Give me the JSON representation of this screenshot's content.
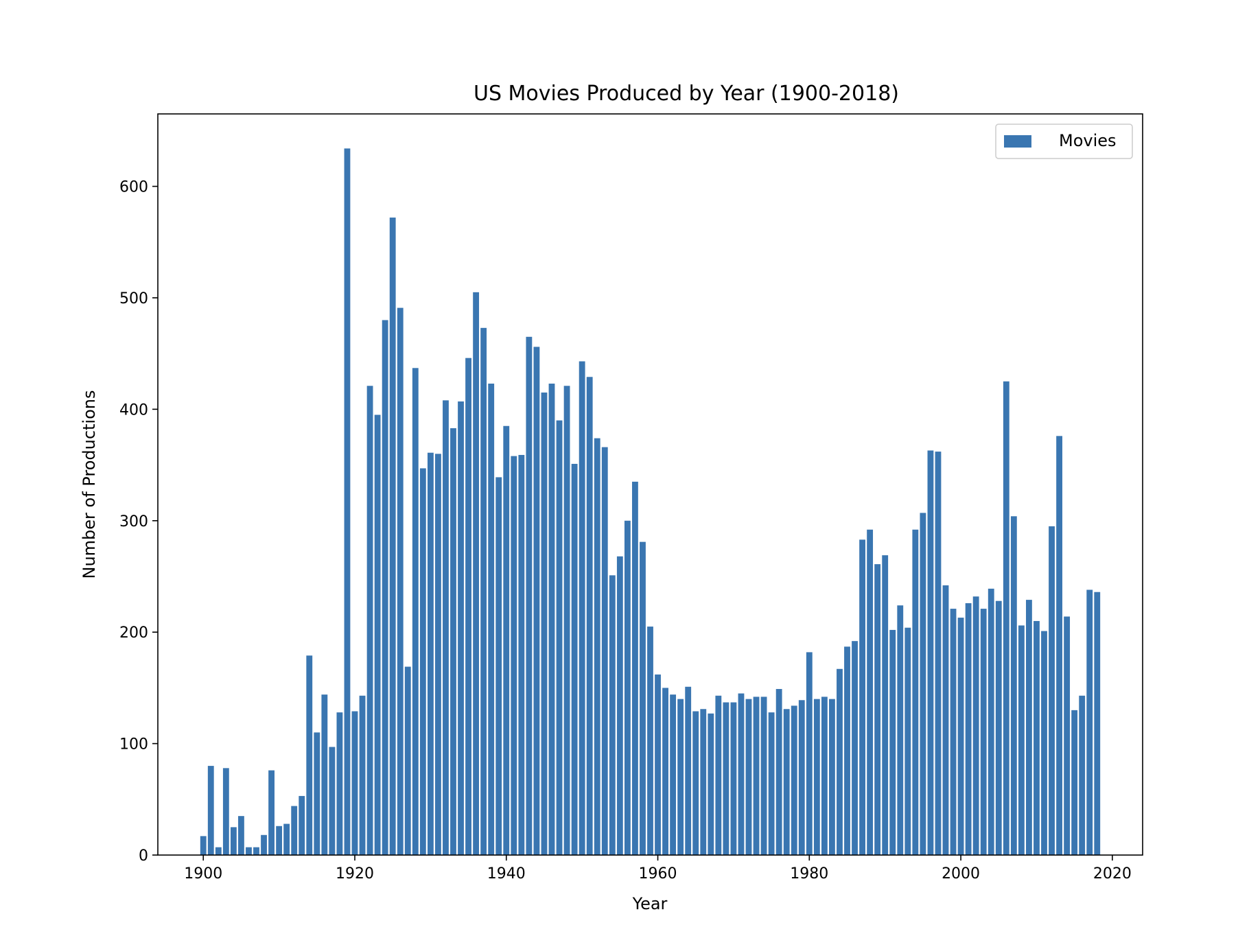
{
  "chart_data": {
    "type": "bar",
    "title": "US Movies Produced by Year (1900-2018)",
    "xlabel": "Year",
    "ylabel": "Number of Productions",
    "xlim": [
      1894,
      2024
    ],
    "ylim": [
      0,
      665
    ],
    "xticks": [
      1900,
      1920,
      1940,
      1960,
      1980,
      2000,
      2020
    ],
    "yticks": [
      0,
      100,
      200,
      300,
      400,
      500,
      600
    ],
    "grid": false,
    "legend_position": "top-right",
    "bar_color": "#3a76b1",
    "series": [
      {
        "name": "Movies",
        "x": [
          1900,
          1901,
          1902,
          1903,
          1904,
          1905,
          1906,
          1907,
          1908,
          1909,
          1910,
          1911,
          1912,
          1913,
          1914,
          1915,
          1916,
          1917,
          1918,
          1919,
          1920,
          1921,
          1922,
          1923,
          1924,
          1925,
          1926,
          1927,
          1928,
          1929,
          1930,
          1931,
          1932,
          1933,
          1934,
          1935,
          1936,
          1937,
          1938,
          1939,
          1940,
          1941,
          1942,
          1943,
          1944,
          1945,
          1946,
          1947,
          1948,
          1949,
          1950,
          1951,
          1952,
          1953,
          1954,
          1955,
          1956,
          1957,
          1958,
          1959,
          1960,
          1961,
          1962,
          1963,
          1964,
          1965,
          1966,
          1967,
          1968,
          1969,
          1970,
          1971,
          1972,
          1973,
          1974,
          1975,
          1976,
          1977,
          1978,
          1979,
          1980,
          1981,
          1982,
          1983,
          1984,
          1985,
          1986,
          1987,
          1988,
          1989,
          1990,
          1991,
          1992,
          1993,
          1994,
          1995,
          1996,
          1997,
          1998,
          1999,
          2000,
          2001,
          2002,
          2003,
          2004,
          2005,
          2006,
          2007,
          2008,
          2009,
          2010,
          2011,
          2012,
          2013,
          2014,
          2015,
          2016,
          2017,
          2018
        ],
        "values": [
          17,
          80,
          7,
          78,
          25,
          35,
          7,
          7,
          18,
          76,
          26,
          28,
          44,
          53,
          179,
          110,
          144,
          97,
          128,
          634,
          129,
          143,
          421,
          395,
          480,
          572,
          491,
          169,
          437,
          347,
          361,
          360,
          408,
          383,
          407,
          446,
          505,
          473,
          423,
          339,
          385,
          358,
          359,
          465,
          456,
          415,
          423,
          390,
          421,
          351,
          443,
          429,
          374,
          366,
          251,
          268,
          300,
          335,
          281,
          205,
          162,
          150,
          144,
          140,
          151,
          129,
          131,
          127,
          143,
          137,
          137,
          145,
          140,
          142,
          142,
          128,
          149,
          131,
          134,
          139,
          182,
          140,
          142,
          140,
          167,
          187,
          192,
          283,
          292,
          261,
          269,
          202,
          224,
          204,
          292,
          307,
          363,
          362,
          242,
          221,
          213,
          226,
          232,
          221,
          239,
          228,
          425,
          304,
          206,
          229,
          210,
          201,
          295,
          376,
          214,
          130,
          143,
          238,
          236
        ]
      }
    ]
  }
}
